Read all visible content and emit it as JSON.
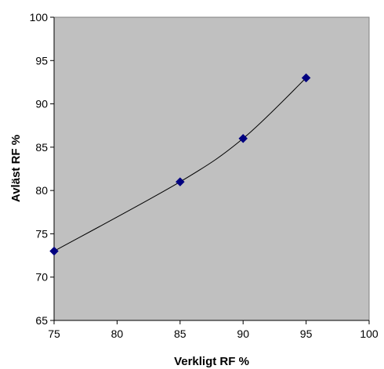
{
  "chart_data": {
    "type": "line",
    "xlabel": "Verkligt RF %",
    "ylabel": "Avläst RF %",
    "xlim": [
      75,
      100
    ],
    "ylim": [
      65,
      100
    ],
    "x_ticks": [
      75,
      80,
      85,
      90,
      95,
      100
    ],
    "y_ticks": [
      65,
      70,
      75,
      80,
      85,
      90,
      95,
      100
    ],
    "grid": false,
    "legend": "none",
    "plot_background": "#c0c0c0",
    "series": [
      {
        "color": "#000080",
        "line_color": "#000000",
        "marker": "diamond",
        "x": [
          75,
          85,
          90,
          95
        ],
        "y": [
          73,
          81,
          86,
          93
        ]
      }
    ]
  }
}
